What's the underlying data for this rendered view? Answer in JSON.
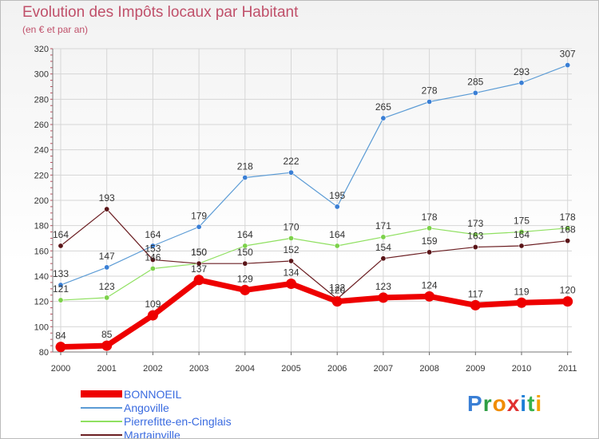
{
  "title": "Evolution des Impôts locaux par Habitant",
  "subtitle": "(en € et par an)",
  "logo": {
    "text": "Proxiti",
    "letters": [
      {
        "ch": "P",
        "color": "#3a7fd5"
      },
      {
        "ch": "r",
        "color": "#2f9e44"
      },
      {
        "ch": "o",
        "color": "#f08c00"
      },
      {
        "ch": "x",
        "color": "#e03131"
      },
      {
        "ch": "i",
        "color": "#1c7ed6"
      },
      {
        "ch": "t",
        "color": "#37b24d"
      },
      {
        "ch": "i",
        "color": "#f59f00"
      }
    ]
  },
  "chart_data": {
    "type": "line",
    "title": "Evolution des Impôts locaux par Habitant",
    "subtitle": "(en € et par an)",
    "xlabel": "",
    "ylabel": "",
    "categories": [
      "2000",
      "2001",
      "2002",
      "2003",
      "2004",
      "2005",
      "2006",
      "2007",
      "2008",
      "2009",
      "2010",
      "2011"
    ],
    "ylim": [
      80,
      320
    ],
    "yticks": [
      80,
      100,
      120,
      140,
      160,
      180,
      200,
      220,
      240,
      260,
      280,
      300,
      320
    ],
    "grid": true,
    "legend_position": "bottom-left",
    "series": [
      {
        "name": "Angoville",
        "color": "#5b9bd5",
        "values": [
          133,
          147,
          164,
          179,
          218,
          222,
          195,
          265,
          278,
          285,
          293,
          307
        ]
      },
      {
        "name": "Pierrefitte-en-Cinglais",
        "color": "#8fe060",
        "values": [
          121,
          123,
          146,
          150,
          164,
          170,
          164,
          171,
          178,
          173,
          175,
          178
        ]
      },
      {
        "name": "Martainville",
        "color": "#6b1e22",
        "values": [
          164,
          193,
          153,
          150,
          150,
          152,
          122,
          154,
          159,
          163,
          164,
          168
        ]
      },
      {
        "name": "BONNOEIL",
        "color": "#ee0000",
        "values": [
          84,
          85,
          109,
          137,
          129,
          134,
          120,
          123,
          124,
          117,
          119,
          120
        ]
      }
    ]
  }
}
